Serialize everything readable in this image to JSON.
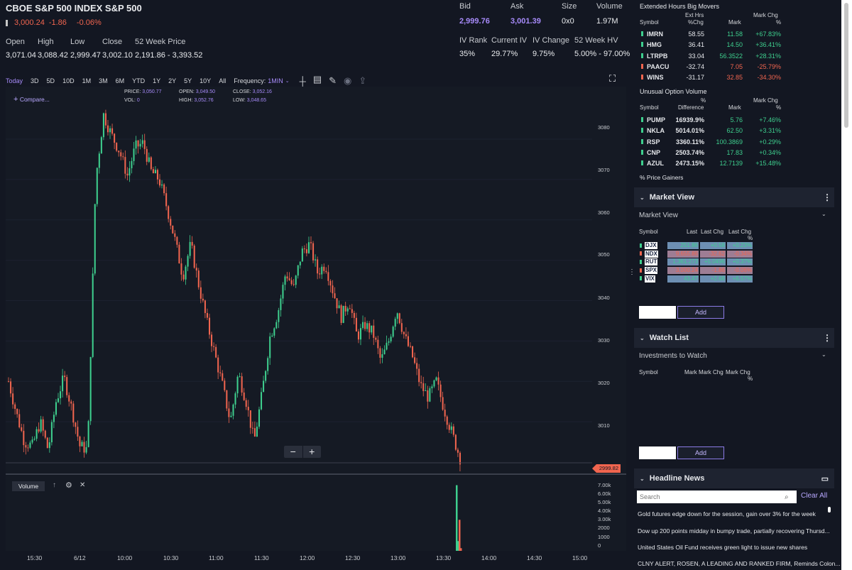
{
  "header": {
    "title": "CBOE S&P 500 INDEX S&P 500",
    "price": "3,000.24",
    "change": "-1.86",
    "change_pct": "-0.06%",
    "stats": [
      {
        "label": "Open",
        "value": "3,071.04"
      },
      {
        "label": "High",
        "value": "3,088.42"
      },
      {
        "label": "Low",
        "value": "2,999.47"
      },
      {
        "label": "Close",
        "value": "3,002.10"
      },
      {
        "label": "52 Week Price",
        "value": "2,191.86 - 3,393.52"
      }
    ],
    "quote": [
      {
        "label": "Bid",
        "value": "2,999.76"
      },
      {
        "label": "Ask",
        "value": "3,001.39"
      },
      {
        "label": "Size",
        "value": "0x0"
      },
      {
        "label": "Volume",
        "value": "1.97M"
      }
    ],
    "iv": [
      {
        "label": "IV Rank",
        "value": "35%"
      },
      {
        "label": "Current IV",
        "value": "29.77%"
      },
      {
        "label": "IV Change",
        "value": "9.75%"
      },
      {
        "label": "52 Week HV",
        "value": "5.00% - 97.00%"
      }
    ]
  },
  "toolbar": {
    "ranges": [
      "Today",
      "3D",
      "5D",
      "10D",
      "1M",
      "3M",
      "6M",
      "YTD",
      "1Y",
      "2Y",
      "5Y",
      "10Y",
      "All"
    ],
    "active_range": "Today",
    "frequency_label": "Frequency:",
    "frequency_value": "1MIN"
  },
  "chart": {
    "compare": "Compare...",
    "info": {
      "price_label": "PRICE:",
      "price": "3,050.77",
      "vol_label": "VOL:",
      "vol": "0",
      "open_label": "OPEN:",
      "open": "3,049.50",
      "high_label": "HIGH:",
      "high": "3,052.76",
      "close_label": "CLOSE:",
      "close": "3,052.16",
      "low_label": "LOW:",
      "low": "3,048.65"
    },
    "last_price_tag": "2999.82",
    "volume_label": "Volume",
    "zoom_out": "−",
    "zoom_in": "+"
  },
  "chart_data": {
    "type": "candlestick",
    "y_ticks": [
      "3080",
      "3070",
      "3060",
      "3050",
      "3040",
      "3030",
      "3020",
      "3010"
    ],
    "ylim": [
      2997,
      3093
    ],
    "x_ticks": [
      "15:30",
      "6/12",
      "10:00",
      "10:30",
      "11:00",
      "11:30",
      "12:00",
      "12:30",
      "13:00",
      "13:30",
      "14:00",
      "14:30",
      "15:00"
    ],
    "volume_ticks": [
      "7.00k",
      "6.00k",
      "5.00k",
      "4.00k",
      "3.00k",
      "2000",
      "1000",
      "0"
    ],
    "price_path": [
      3020,
      3012,
      3005,
      3004,
      3010,
      3003,
      3015,
      3021,
      3013,
      3004,
      3003,
      3070,
      3086,
      3081,
      3077,
      3071,
      3078,
      3079,
      3072,
      3070,
      3063,
      3055,
      3046,
      3054,
      3044,
      3035,
      3027,
      3019,
      3010,
      3022,
      3015,
      3005,
      3017,
      3031,
      3037,
      3047,
      3043,
      3052,
      3054,
      3047,
      3049,
      3042,
      3036,
      3040,
      3031,
      3034,
      3032,
      3025,
      3030,
      3038,
      3031,
      3026,
      3019,
      3016,
      3020,
      3013,
      3007,
      3001
    ]
  },
  "right": {
    "big_movers_title": "Extended Hours Big Movers",
    "big_movers_headers": {
      "symbol": "Symbol",
      "c1a": "Ext Hrs",
      "c1b": "%Chg",
      "c2": "Mark",
      "c3a": "Mark Chg",
      "c3b": "%"
    },
    "big_movers": [
      {
        "symbol": "IMRN",
        "v1": "58.55",
        "v2": "11.58",
        "v3": "+67.83%",
        "dir": "pos"
      },
      {
        "symbol": "HMG",
        "v1": "36.41",
        "v2": "14.50",
        "v3": "+36.41%",
        "dir": "pos"
      },
      {
        "symbol": "LTRPB",
        "v1": "33.04",
        "v2": "56.3522",
        "v3": "+28.31%",
        "dir": "pos"
      },
      {
        "symbol": "PAACU",
        "v1": "-32.74",
        "v2": "7.05",
        "v3": "-25.79%",
        "dir": "neg"
      },
      {
        "symbol": "WINS",
        "v1": "-31.17",
        "v2": "32.85",
        "v3": "-34.30%",
        "dir": "neg"
      }
    ],
    "unusual_title": "Unusual Option Volume",
    "unusual_headers": {
      "symbol": "Symbol",
      "c1a": "%",
      "c1b": "Difference",
      "c2": "Mark",
      "c3a": "Mark Chg",
      "c3b": "%"
    },
    "unusual": [
      {
        "symbol": "PUMP",
        "v1": "16939.9%",
        "v2": "5.76",
        "v3": "+7.46%"
      },
      {
        "symbol": "NKLA",
        "v1": "5014.01%",
        "v2": "62.50",
        "v3": "+3.31%"
      },
      {
        "symbol": "RSP",
        "v1": "3360.11%",
        "v2": "100.3869",
        "v3": "+0.29%"
      },
      {
        "symbol": "CNP",
        "v1": "2503.74%",
        "v2": "17.83",
        "v3": "+0.34%"
      },
      {
        "symbol": "AZUL",
        "v1": "2473.15%",
        "v2": "12.7139",
        "v3": "+15.48%"
      }
    ],
    "price_gainers": "% Price Gainers",
    "market_view_section": "Market View",
    "market_view_select": "Market View",
    "mv_headers": {
      "symbol": "Symbol",
      "last": "Last",
      "lchg": "Last Chg",
      "lchgp": "Last Chg",
      "pct": "%"
    },
    "market_view": [
      {
        "symbol": "DJX",
        "last": "251.86",
        "chg": "+0.58",
        "pct": "+0.23%",
        "dir": "pos"
      },
      {
        "symbol": "NDX",
        "last": "9,655.86",
        "chg": "-32.62",
        "pct": "-0.34%",
        "dir": "neg"
      },
      {
        "symbol": "RUT",
        "last": "1,361.273",
        "chg": "+5.0496",
        "pct": "+0.37%",
        "dir": "pos"
      },
      {
        "symbol": "SPX",
        "last": "3,000.24",
        "chg": "-1.86",
        "pct": "-0.06%",
        "dir": "neg"
      },
      {
        "symbol": "VIX",
        "last": "43.47",
        "chg": "+2.68",
        "pct": "+6.57%",
        "dir": "pos"
      }
    ],
    "add_label": "Add",
    "watch_section": "Watch List",
    "watch_select": "Investments to Watch",
    "watch_headers": {
      "symbol": "Symbol",
      "mark": "Mark",
      "mchg": "Mark Chg",
      "mchgp": "Mark Chg",
      "pct": "%"
    },
    "news_section": "Headline News",
    "search_placeholder": "Search",
    "clear_all": "Clear All",
    "news": [
      "Gold futures edge down for the session, gain over 3% for the week",
      "Dow up 200 points midday in bumpy trade, partially recovering Thursd...",
      "United States Oil Fund receives green light to issue new shares",
      "CLNY ALERT, ROSEN, A LEADING AND RANKED FIRM, Reminds Colon..."
    ]
  },
  "colors": {
    "up": "#3ecf8e",
    "down": "#f0654f",
    "accent": "#a78bfa",
    "bg": "#131722"
  }
}
